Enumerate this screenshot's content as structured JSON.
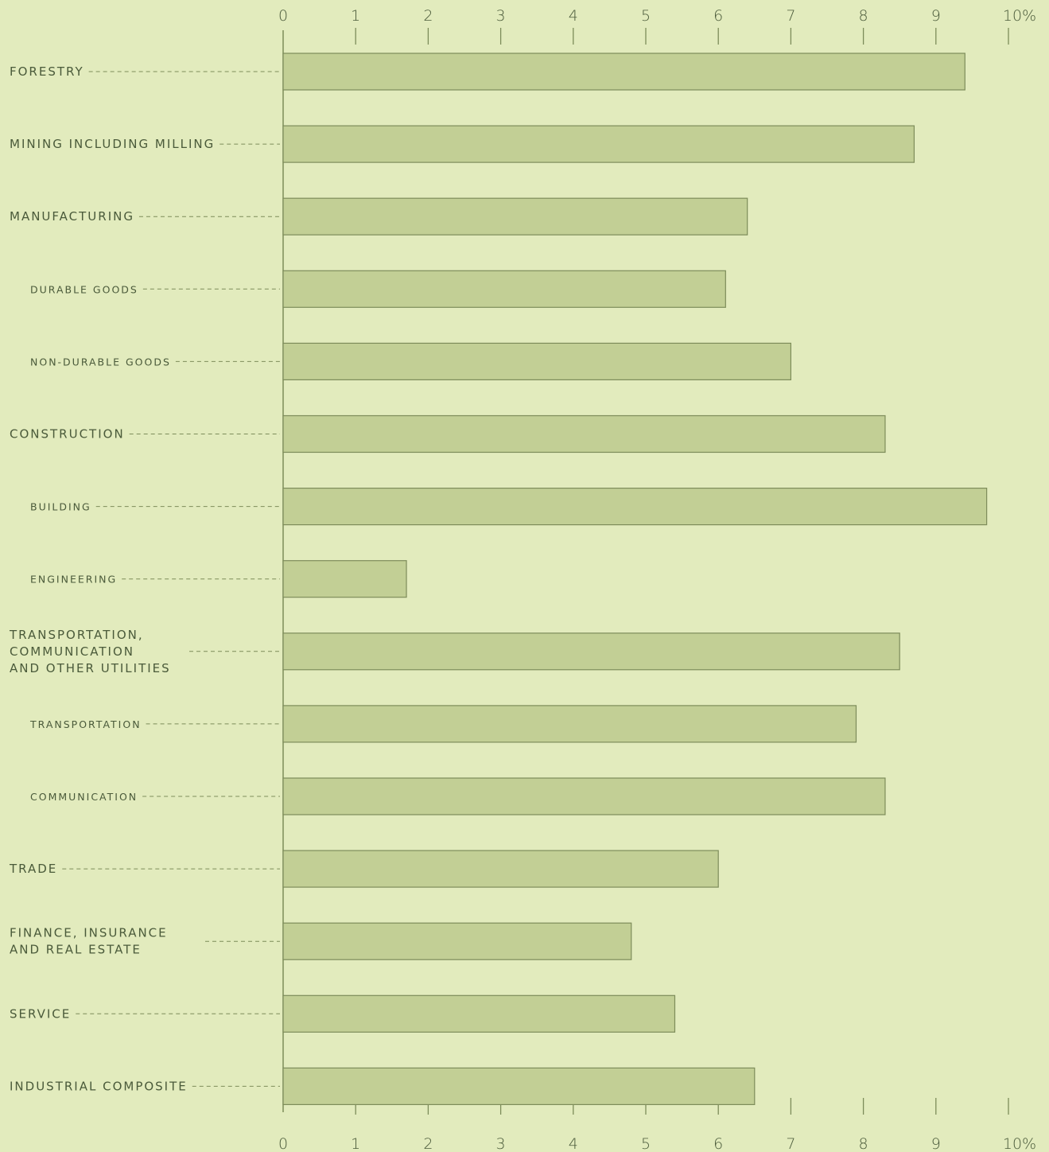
{
  "chart_data": {
    "type": "bar",
    "orientation": "horizontal",
    "title": "",
    "xlabel": "",
    "ylabel": "",
    "xlim": [
      0,
      10
    ],
    "x_ticks": [
      "0",
      "1",
      "2",
      "3",
      "4",
      "5",
      "6",
      "7",
      "8",
      "9",
      "10%"
    ],
    "grid": false,
    "bar_color": "#c2cf95",
    "bar_edge_color": "#7d8c5a",
    "text_color": "#4a5a3a",
    "background_color": "#e2ebbd",
    "categories": [
      {
        "label": [
          "FORESTRY"
        ],
        "value": 9.4,
        "level": "main"
      },
      {
        "label": [
          "MINING INCLUDING MILLING"
        ],
        "value": 8.7,
        "level": "main"
      },
      {
        "label": [
          "MANUFACTURING"
        ],
        "value": 6.4,
        "level": "main"
      },
      {
        "label": [
          "DURABLE GOODS"
        ],
        "value": 6.1,
        "level": "sub"
      },
      {
        "label": [
          "NON-DURABLE GOODS"
        ],
        "value": 7.0,
        "level": "sub"
      },
      {
        "label": [
          "CONSTRUCTION"
        ],
        "value": 8.3,
        "level": "main"
      },
      {
        "label": [
          "BUILDING"
        ],
        "value": 9.7,
        "level": "sub"
      },
      {
        "label": [
          "ENGINEERING"
        ],
        "value": 1.7,
        "level": "sub"
      },
      {
        "label": [
          "TRANSPORTATION,",
          "COMMUNICATION",
          "AND OTHER UTILITIES"
        ],
        "value": 8.5,
        "level": "main"
      },
      {
        "label": [
          "TRANSPORTATION"
        ],
        "value": 7.9,
        "level": "sub"
      },
      {
        "label": [
          "COMMUNICATION"
        ],
        "value": 8.3,
        "level": "sub"
      },
      {
        "label": [
          "TRADE"
        ],
        "value": 6.0,
        "level": "main"
      },
      {
        "label": [
          "FINANCE, INSURANCE",
          "AND REAL ESTATE"
        ],
        "value": 4.8,
        "level": "main"
      },
      {
        "label": [
          "SERVICE"
        ],
        "value": 5.4,
        "level": "main"
      },
      {
        "label": [
          "INDUSTRIAL COMPOSITE"
        ],
        "value": 6.5,
        "level": "main"
      }
    ]
  }
}
